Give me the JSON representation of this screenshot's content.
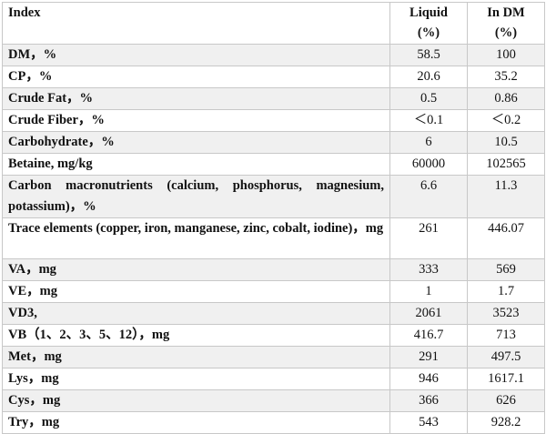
{
  "table": {
    "headers": {
      "index": "Index",
      "liquid": "Liquid",
      "liquid_unit": "(%)",
      "dm": "In DM",
      "dm_unit": "(%)"
    },
    "rows": [
      {
        "label": "DM，%",
        "liquid": "58.5",
        "dm": "100"
      },
      {
        "label": "CP，%",
        "liquid": "20.6",
        "dm": "35.2"
      },
      {
        "label": "Crude Fat，%",
        "liquid": "0.5",
        "dm": "0.86"
      },
      {
        "label": "Crude Fiber，%",
        "liquid": "＜0.1",
        "dm": "＜0.2"
      },
      {
        "label": "Carbohydrate，%",
        "liquid": "6",
        "dm": "10.5"
      },
      {
        "label": "Betaine, mg/kg",
        "liquid": "60000",
        "dm": "102565"
      },
      {
        "label": "Carbon macronutrients (calcium, phosphorus, magnesium, potassium)，%",
        "liquid": "6.6",
        "dm": "11.3"
      },
      {
        "label": "Trace elements (copper, iron, manganese, zinc, cobalt, iodine)，mg",
        "liquid": "261",
        "dm": "446.07"
      },
      {
        "label": "VA，mg",
        "liquid": "333",
        "dm": "569"
      },
      {
        "label": "VE，mg",
        "liquid": "1",
        "dm": "1.7"
      },
      {
        "label": "VD3,",
        "liquid": "2061",
        "dm": "3523"
      },
      {
        "label": "VB（1、2、3、5、12），mg",
        "liquid": "416.7",
        "dm": "713"
      },
      {
        "label": "Met，mg",
        "liquid": "291",
        "dm": "497.5"
      },
      {
        "label": "Lys，mg",
        "liquid": "946",
        "dm": "1617.1"
      },
      {
        "label": "Cys，mg",
        "liquid": "366",
        "dm": "626"
      },
      {
        "label": "Try，mg",
        "liquid": "543",
        "dm": "928.2"
      }
    ]
  }
}
